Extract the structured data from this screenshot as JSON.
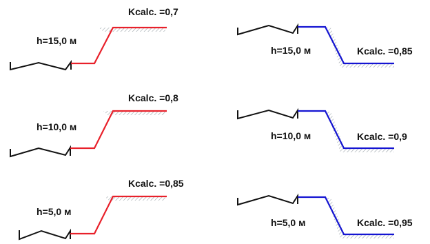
{
  "colors": {
    "ground": "#111111",
    "fill_profile": "#e8202a",
    "cut_profile": "#1414d2",
    "hatch": "#9aa3a8"
  },
  "panels": [
    {
      "kind": "fill",
      "height_label": "h=15,0 м",
      "k_label": "Kcalc. =0,7"
    },
    {
      "kind": "fill",
      "height_label": "h=10,0 м",
      "k_label": "Kcalc. =0,8"
    },
    {
      "kind": "fill",
      "height_label": "h=5,0 м",
      "k_label": "Kcalc. =0,85"
    },
    {
      "kind": "cut",
      "height_label": "h=15,0 м",
      "k_label": "Kcalc. =0,85"
    },
    {
      "kind": "cut",
      "height_label": "h=10,0 м",
      "k_label": "Kcalc. =0,9"
    },
    {
      "kind": "cut",
      "height_label": "h=5,0 м",
      "k_label": "Kcalc. =0,95"
    }
  ]
}
